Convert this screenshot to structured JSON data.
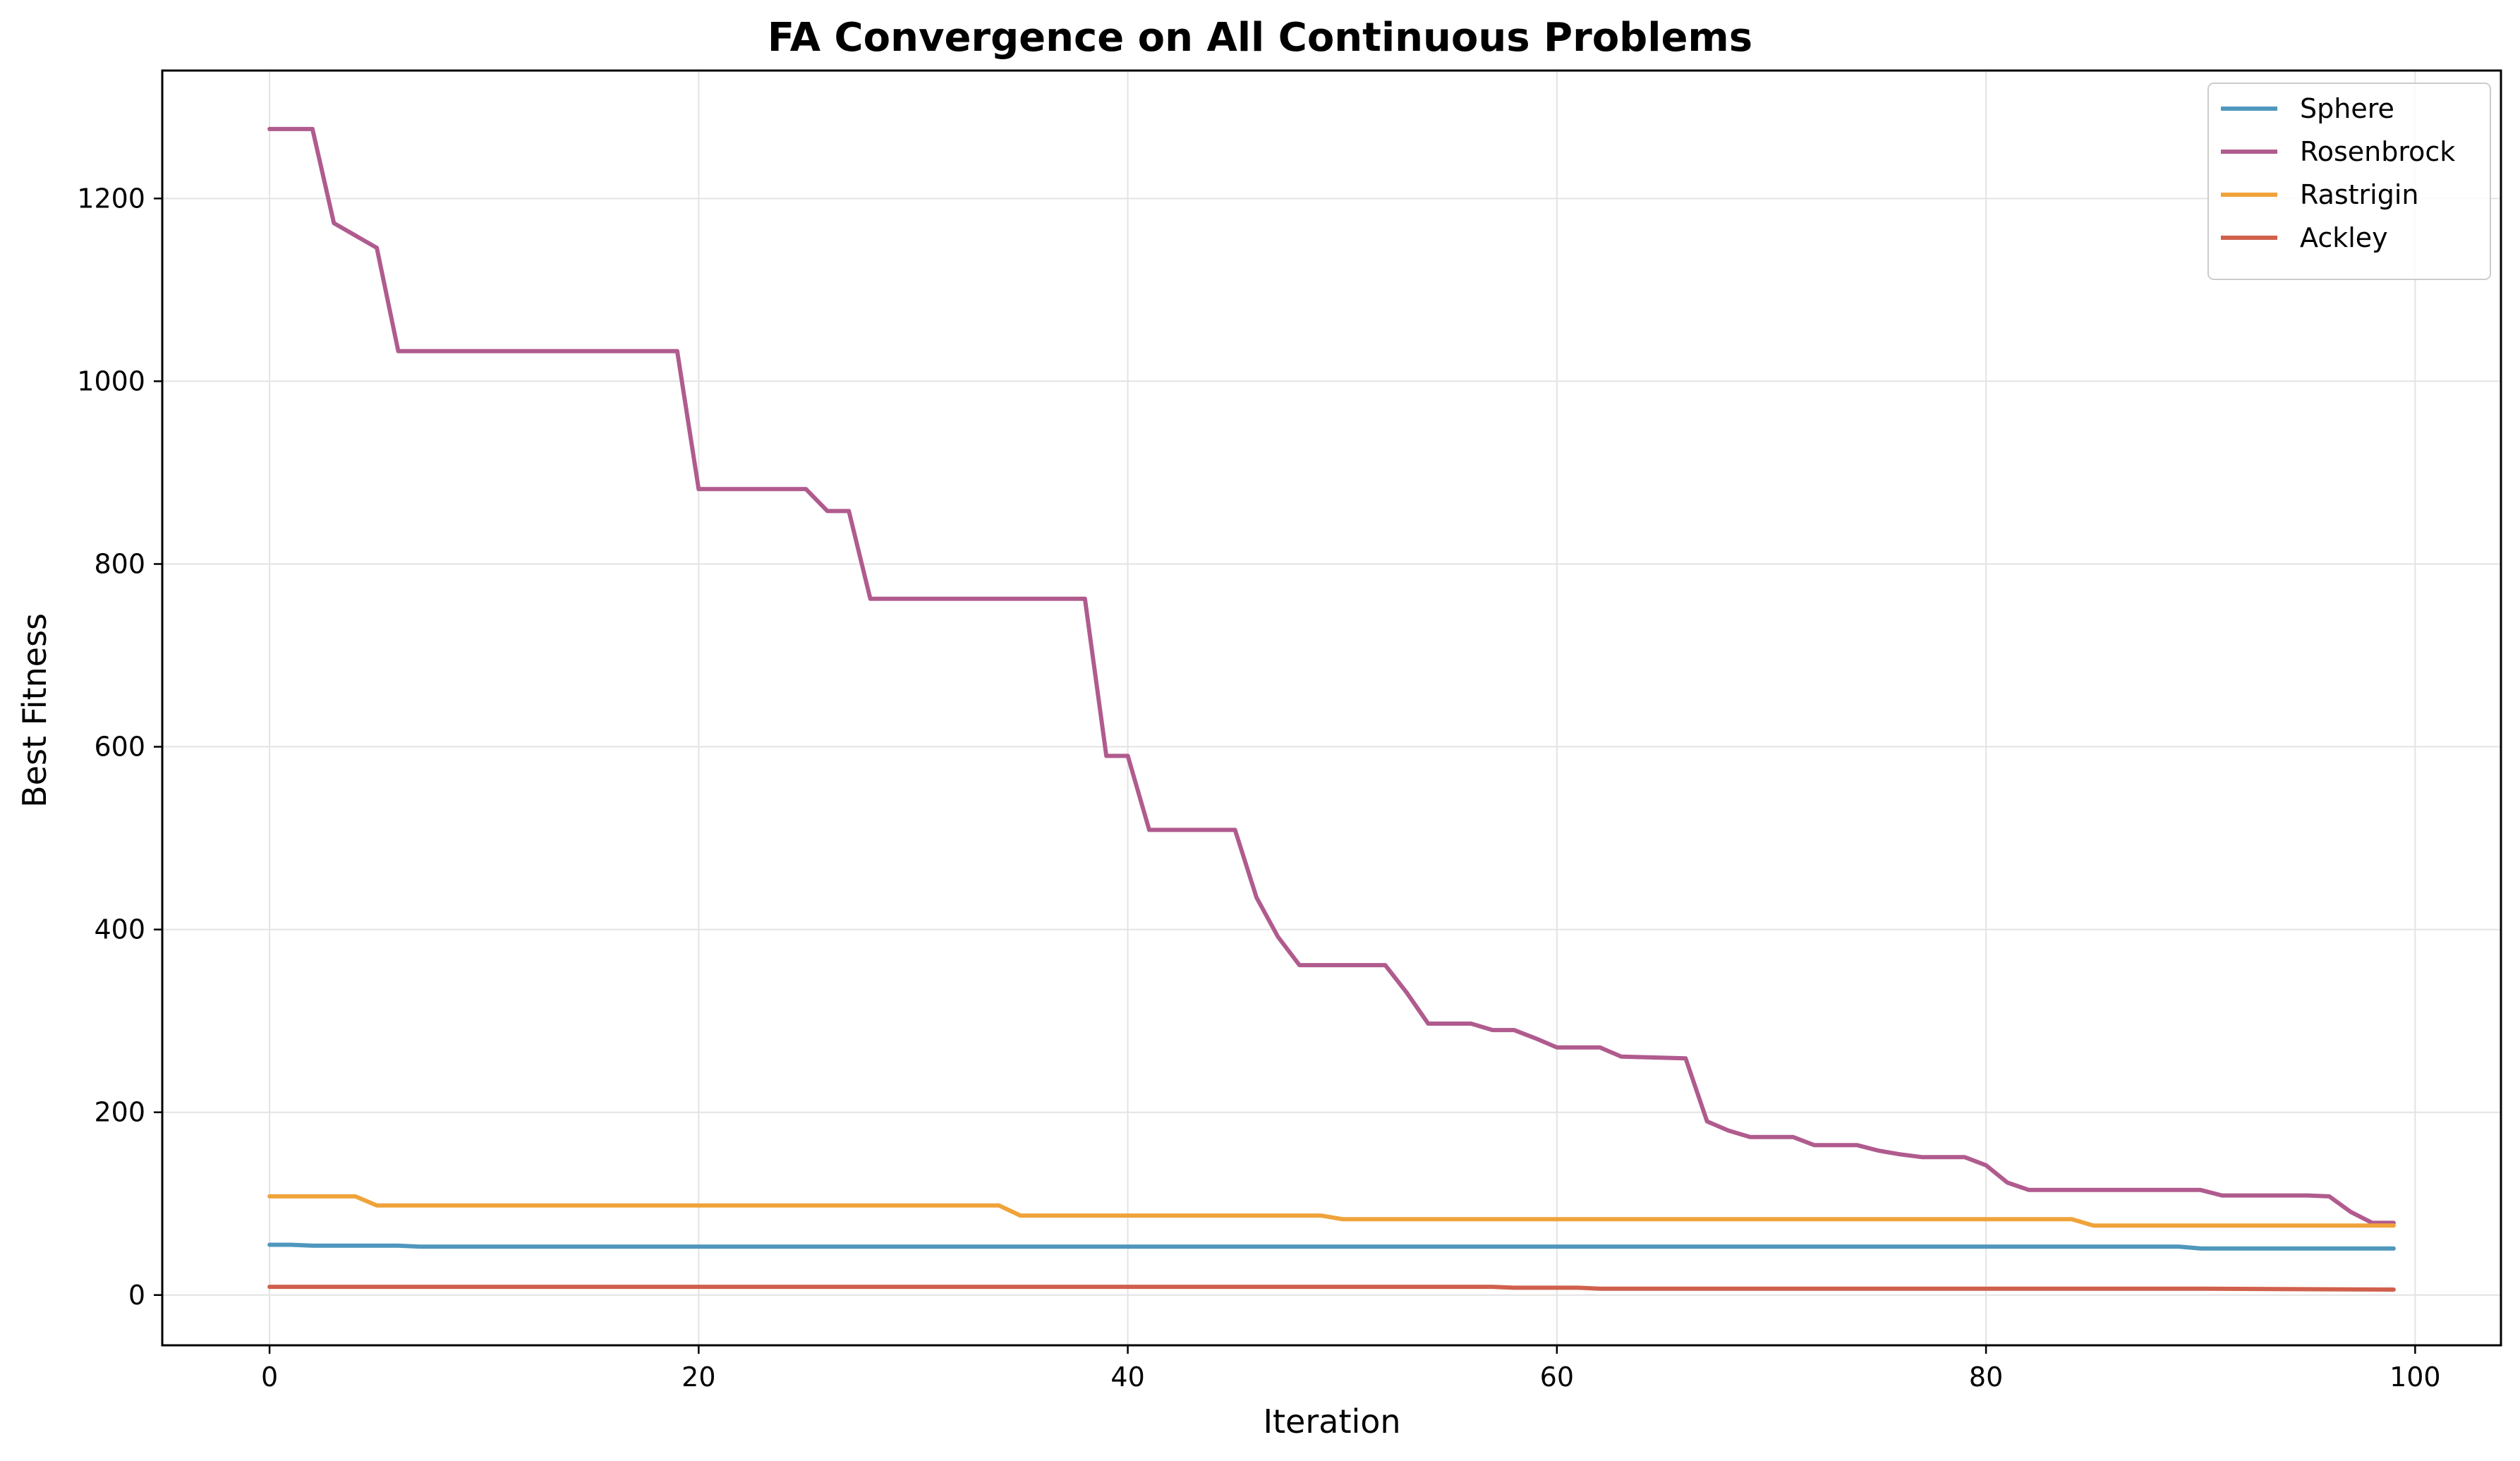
{
  "chart_data": {
    "type": "line",
    "title": "FA Convergence on All Continuous Problems",
    "xlabel": "Iteration",
    "ylabel": "Best Fitness",
    "xlim": [
      -5,
      104
    ],
    "ylim": [
      -55,
      1340
    ],
    "xticks": [
      0,
      20,
      40,
      60,
      80,
      100
    ],
    "yticks": [
      0,
      200,
      400,
      600,
      800,
      1000,
      1200
    ],
    "grid": true,
    "legend_position": "top-right",
    "series": [
      {
        "name": "Sphere",
        "color": "#4f97bd",
        "x": [
          0,
          1,
          2,
          3,
          4,
          5,
          6,
          7,
          10,
          20,
          30,
          40,
          50,
          60,
          70,
          80,
          89,
          90,
          95,
          99
        ],
        "y": [
          55,
          55,
          54,
          54,
          54,
          54,
          54,
          53,
          53,
          53,
          53,
          53,
          53,
          53,
          53,
          53,
          53,
          51,
          51,
          51
        ]
      },
      {
        "name": "Rosenbrock",
        "color": "#b05b8e",
        "x": [
          0,
          2,
          3,
          5,
          6,
          19,
          20,
          25,
          26,
          27,
          28,
          38,
          39,
          40,
          41,
          45,
          46,
          47,
          48,
          52,
          53,
          54,
          56,
          57,
          58,
          59,
          60,
          62,
          63,
          66,
          67,
          68,
          69,
          71,
          72,
          74,
          75,
          76,
          77,
          79,
          80,
          81,
          82,
          90,
          91,
          95,
          96,
          97,
          98,
          99
        ],
        "y": [
          1276,
          1276,
          1173,
          1146,
          1033,
          1033,
          882,
          882,
          858,
          858,
          762,
          762,
          590,
          590,
          509,
          509,
          435,
          392,
          361,
          361,
          331,
          297,
          297,
          290,
          290,
          281,
          271,
          271,
          261,
          259,
          190,
          180,
          173,
          173,
          164,
          164,
          158,
          154,
          151,
          151,
          142,
          123,
          115,
          115,
          109,
          109,
          108,
          91,
          79,
          79
        ]
      },
      {
        "name": "Rastrigin",
        "color": "#f0a33a",
        "x": [
          0,
          4,
          5,
          34,
          35,
          49,
          50,
          84,
          85,
          99
        ],
        "y": [
          108,
          108,
          98,
          98,
          87,
          87,
          83,
          83,
          76,
          76
        ]
      },
      {
        "name": "Ackley",
        "color": "#d0604c",
        "x": [
          0,
          20,
          40,
          57,
          58,
          61,
          62,
          70,
          80,
          90,
          99
        ],
        "y": [
          9,
          9,
          9,
          9,
          8,
          8,
          7,
          7,
          7,
          7,
          6
        ]
      }
    ]
  }
}
